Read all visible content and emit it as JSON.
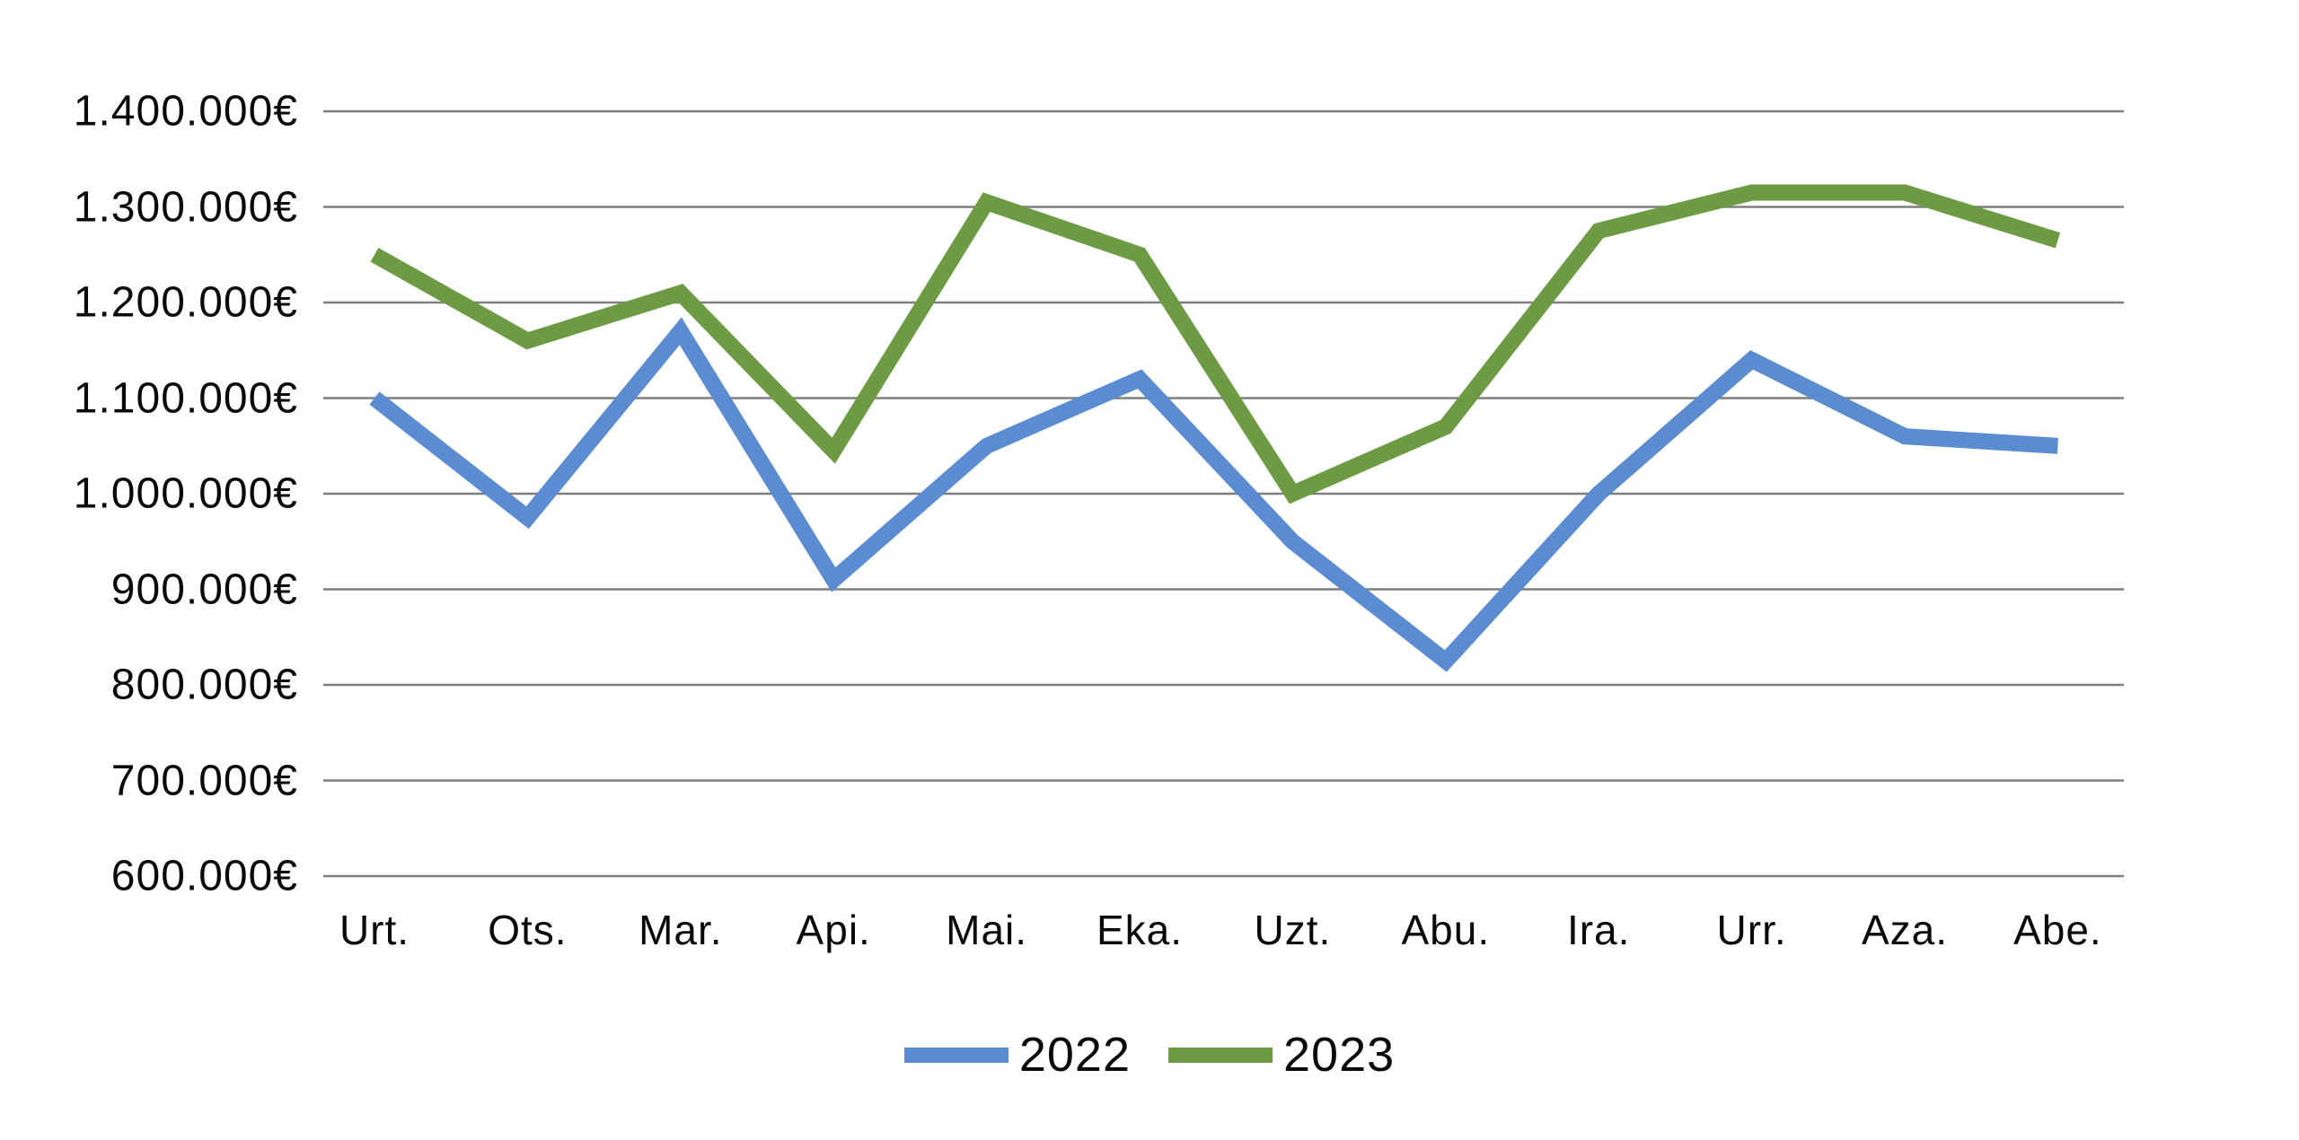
{
  "chart_data": {
    "type": "line",
    "categories": [
      "Urt.",
      "Ots.",
      "Mar.",
      "Api.",
      "Mai.",
      "Eka.",
      "Uzt.",
      "Abu.",
      "Ira.",
      "Urr.",
      "Aza.",
      "Abe."
    ],
    "series": [
      {
        "name": "2022",
        "color": "#5b8bd0",
        "values": [
          1100000,
          975000,
          1170000,
          910000,
          1050000,
          1120000,
          950000,
          825000,
          1000000,
          1140000,
          1060000,
          1050000
        ]
      },
      {
        "name": "2023",
        "color": "#6d9b44",
        "values": [
          1250000,
          1160000,
          1210000,
          1045000,
          1305000,
          1250000,
          1000000,
          1070000,
          1275000,
          1315000,
          1315000,
          1265000
        ]
      }
    ],
    "title": "",
    "xlabel": "",
    "ylabel": "",
    "y_axis": {
      "min": 600000,
      "max": 1400000,
      "step": 100000,
      "tick_labels": [
        "1.400.000€",
        "1.300.000€",
        "1.200.000€",
        "1.100.000€",
        "1.000.000€",
        "900.000€",
        "800.000€",
        "700.000€",
        "600.000€"
      ]
    },
    "grid": true,
    "gridline_color": "#7f7f7f",
    "legend": {
      "position": "bottom",
      "entries": [
        "2022",
        "2023"
      ]
    }
  },
  "layout_note": "monthly sales line chart, Basque month abbreviations, euro amounts"
}
